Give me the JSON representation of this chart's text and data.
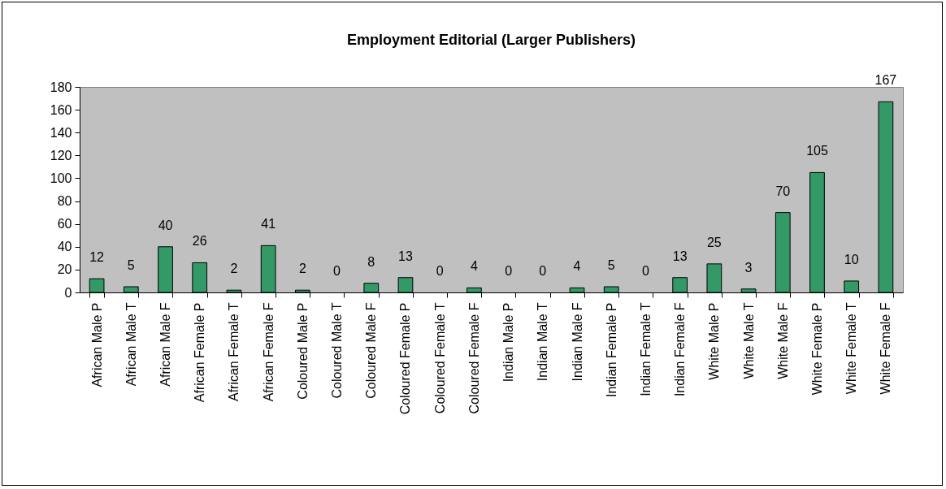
{
  "chart_data": {
    "type": "bar",
    "title": "Employment Editorial (Larger Publishers)",
    "categories": [
      "African Male P",
      "African Male T",
      "African Male F",
      "African Female P",
      "African Female T",
      "African Female F",
      "Coloured Male P",
      "Coloured Male T",
      "Coloured Male F",
      "Coloured Female P",
      "Coloured Female T",
      "Coloured Female F",
      "Indian Male P",
      "Indian Male T",
      "Indian Male F",
      "Indian Female P",
      "Indian Female T",
      "Indian Female F",
      "White Male P",
      "White Male T",
      "White Male F",
      "White Female P",
      "White Female T",
      "White Female F"
    ],
    "values": [
      12,
      5,
      40,
      26,
      2,
      41,
      2,
      0,
      8,
      13,
      0,
      4,
      0,
      0,
      4,
      5,
      0,
      13,
      25,
      3,
      70,
      105,
      10,
      167
    ],
    "color": "#339966",
    "ylim": [
      0,
      180
    ],
    "yticks": [
      0,
      20,
      40,
      60,
      80,
      100,
      120,
      140,
      160,
      180
    ],
    "grid": false,
    "data_labels": true
  }
}
